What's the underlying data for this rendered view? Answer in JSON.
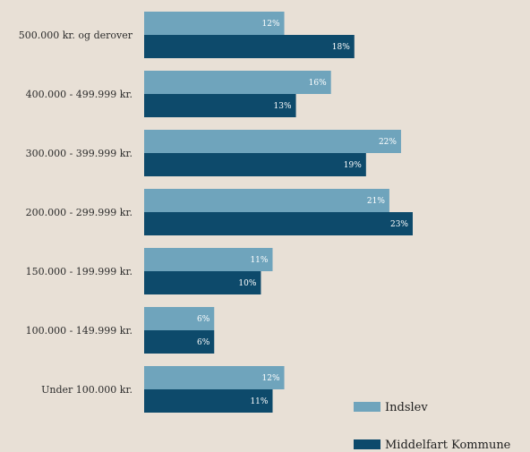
{
  "chart_data": {
    "type": "bar",
    "orientation": "horizontal",
    "categories": [
      "500.000 kr. og derover",
      "400.000 - 499.999 kr.",
      "300.000 - 399.999 kr.",
      "200.000 - 299.999 kr.",
      "150.000 - 199.999 kr.",
      "100.000 - 149.999 kr.",
      "Under 100.000 kr."
    ],
    "series": [
      {
        "name": "Indslev",
        "values": [
          12,
          16,
          22,
          21,
          11,
          6,
          12
        ],
        "color": "#6fa4bc"
      },
      {
        "name": "Middelfart Kommune",
        "values": [
          18,
          13,
          19,
          23,
          10,
          6,
          11
        ],
        "color": "#0d4a6b"
      }
    ],
    "value_suffix": "%",
    "xlim": [
      0,
      30
    ],
    "grid": false,
    "legend_position": "bottom-right",
    "title": "",
    "xlabel": "",
    "ylabel": ""
  }
}
